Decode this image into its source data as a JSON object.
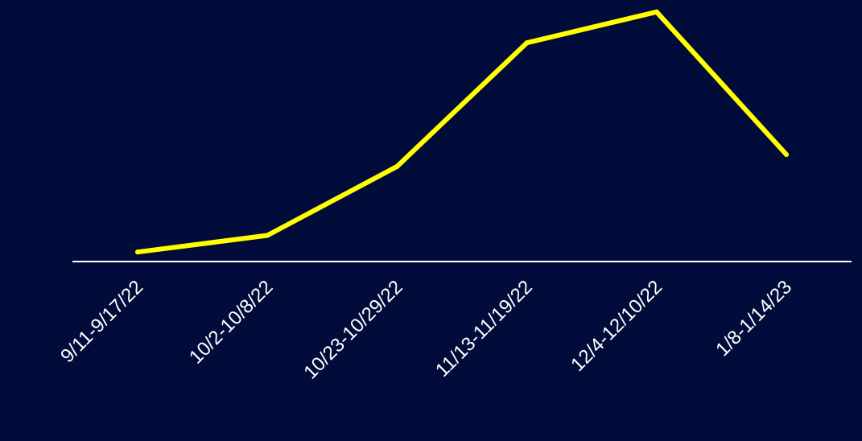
{
  "colors": {
    "background": "#020c3a",
    "line": "#ffff00",
    "axis": "#ffffff",
    "text": "#ffffff"
  },
  "chart_data": {
    "type": "line",
    "title": "",
    "xlabel": "",
    "ylabel": "",
    "grid": false,
    "legend": "none",
    "categories": [
      "9/11-9/17/22",
      "10/2-10/8/22",
      "10/23-10/29/22",
      "11/13-11/19/22",
      "12/4-12/10/22",
      "1/8-1/14/23"
    ],
    "series": [
      {
        "values": [
          4,
          11,
          40,
          92,
          105,
          45
        ]
      }
    ],
    "ylim": [
      0,
      110
    ]
  }
}
